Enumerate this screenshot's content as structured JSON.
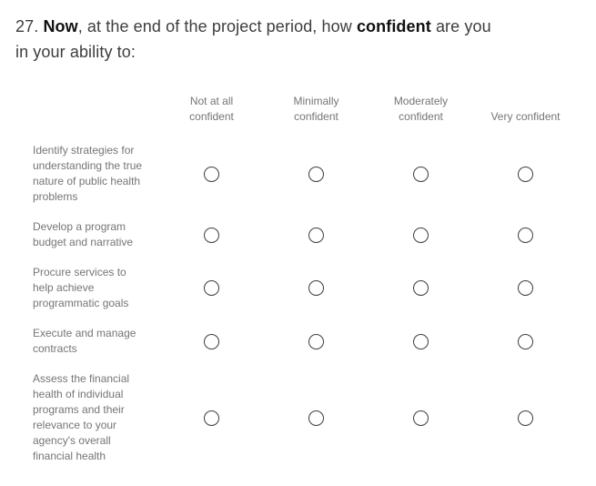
{
  "question": {
    "segments": [
      {
        "text": "27. ",
        "bold": false
      },
      {
        "text": "Now",
        "bold": true
      },
      {
        "text": ", at the end of the project period, how ",
        "bold": false
      },
      {
        "text": "confident",
        "bold": true
      },
      {
        "text": " are you\nin your ability to:",
        "bold": false
      }
    ]
  },
  "matrix": {
    "columns": [
      {
        "label": "Not at all\nconfident"
      },
      {
        "label": "Minimally\nconfident"
      },
      {
        "label": "Moderately\nconfident"
      },
      {
        "label": "Very confident"
      }
    ],
    "rows": [
      {
        "label": "Identify strategies for\nunderstanding the true\nnature of public health\nproblems",
        "selected": null
      },
      {
        "label": "Develop a program\nbudget and narrative",
        "selected": null
      },
      {
        "label": "Procure services to\nhelp achieve\nprogrammatic goals",
        "selected": null
      },
      {
        "label": "Execute and manage\ncontracts",
        "selected": null
      },
      {
        "label": "Assess the financial\nhealth of individual\nprograms and their\nrelevance to your\nagency's overall\nfinancial health",
        "selected": null
      }
    ]
  },
  "colors": {
    "background": "#ffffff",
    "title_text": "#3d3d3d",
    "title_bold_text": "#101010",
    "label_text": "#757575",
    "radio_border": "#3d3d3d"
  }
}
